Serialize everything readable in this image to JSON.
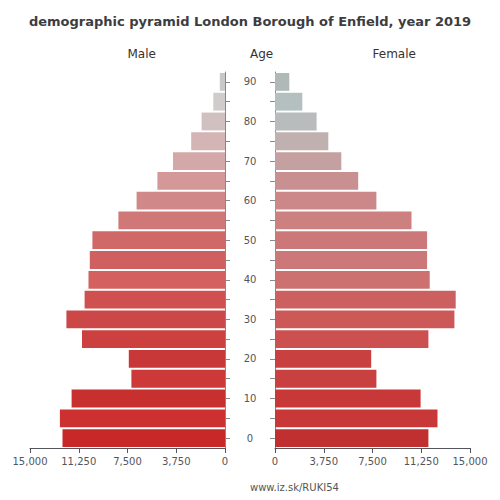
{
  "chart_data": {
    "type": "bar",
    "orientation": "horizontal",
    "title": "demographic pyramid London Borough of Enfield, year 2019",
    "ylabel": "Age",
    "annotations": [
      "www.iz.sk/RUKI54"
    ],
    "categories": [
      "0",
      null,
      "10",
      null,
      "20",
      null,
      "30",
      null,
      "40",
      null,
      "50",
      null,
      "60",
      null,
      "70",
      null,
      "80",
      null,
      "90"
    ],
    "series": [
      {
        "name": "Male",
        "values": [
          12500,
          12700,
          11800,
          7200,
          7400,
          11000,
          12200,
          10800,
          10500,
          10400,
          10200,
          8200,
          6800,
          5200,
          4000,
          2600,
          1800,
          900,
          400
        ],
        "colors": [
          "#c82828",
          "#cd3030",
          "#c83030",
          "#cd3838",
          "#c83838",
          "#cc4040",
          "#cc4848",
          "#d05050",
          "#d46060",
          "#d06060",
          "#d06868",
          "#d07878",
          "#d08888",
          "#d49898",
          "#d4a8a8",
          "#d4b4b4",
          "#d0c0c0",
          "#d0cccc",
          "#c8c8c8"
        ]
      },
      {
        "name": "Female",
        "values": [
          11800,
          12500,
          11200,
          7800,
          7400,
          11800,
          13800,
          13900,
          11900,
          11700,
          11700,
          10500,
          7800,
          6400,
          5100,
          4100,
          3200,
          2100,
          1100
        ],
        "colors": [
          "#c03030",
          "#c83838",
          "#c83838",
          "#c84040",
          "#c84040",
          "#cc5050",
          "#cc5858",
          "#cc6060",
          "#cc7070",
          "#cc7878",
          "#cc7878",
          "#cc8080",
          "#cc8888",
          "#c89090",
          "#c4a0a0",
          "#c0b0b0",
          "#b8bcbc",
          "#b4c0c0",
          "#b0b8b8"
        ]
      }
    ],
    "xlim": [
      0,
      15000
    ],
    "xticks": [
      0,
      3750,
      7500,
      11250,
      15000
    ],
    "grid": false
  }
}
